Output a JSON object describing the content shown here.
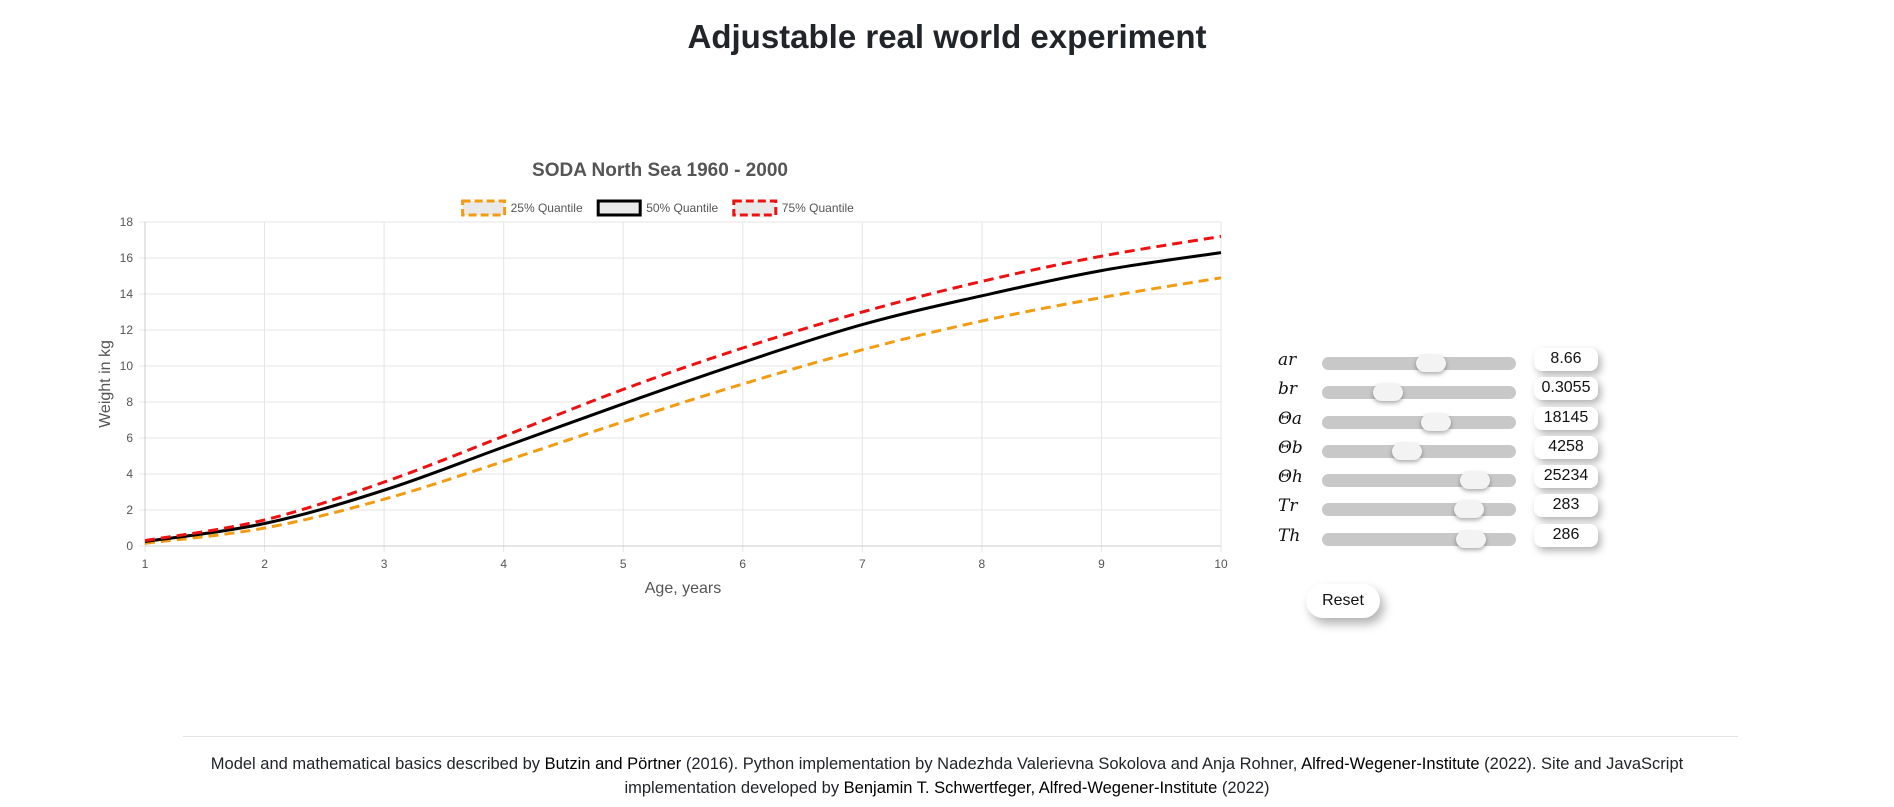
{
  "page": {
    "title": "Adjustable real world experiment"
  },
  "chart_data": {
    "type": "line",
    "title": "SODA North Sea 1960 - 2000",
    "xlabel": "Age, years",
    "ylabel": "Weight in kg",
    "xlim": [
      1,
      10
    ],
    "ylim": [
      0,
      18
    ],
    "xticks": [
      "1",
      "2",
      "3",
      "4",
      "5",
      "6",
      "7",
      "8",
      "9",
      "10"
    ],
    "yticks": [
      "0",
      "2",
      "4",
      "6",
      "8",
      "10",
      "12",
      "14",
      "16",
      "18"
    ],
    "grid": true,
    "legend_position": "top",
    "x": [
      1,
      2,
      3,
      4,
      5,
      6,
      7,
      8,
      9,
      10
    ],
    "series": [
      {
        "name": "25% Quantile",
        "color": "#f39c12",
        "dashed": true,
        "values": [
          0.15,
          1.0,
          2.6,
          4.7,
          6.9,
          9.0,
          10.9,
          12.5,
          13.8,
          14.9
        ]
      },
      {
        "name": "50% Quantile",
        "color": "#000000",
        "dashed": false,
        "values": [
          0.25,
          1.25,
          3.1,
          5.5,
          7.9,
          10.2,
          12.3,
          13.9,
          15.3,
          16.3
        ]
      },
      {
        "name": "75% Quantile",
        "color": "#ee1111",
        "dashed": true,
        "values": [
          0.3,
          1.45,
          3.55,
          6.1,
          8.7,
          11.0,
          13.0,
          14.7,
          16.1,
          17.2
        ]
      }
    ]
  },
  "parameters": {
    "items": [
      {
        "symbol": "ar",
        "value": "8.66",
        "position": 0.56
      },
      {
        "symbol": "br",
        "value": "0.3055",
        "position": 0.34
      },
      {
        "symbol": "Θa",
        "value": "18145",
        "position": 0.59
      },
      {
        "symbol": "Θb",
        "value": "4258",
        "position": 0.44
      },
      {
        "symbol": "Θh",
        "value": "25234",
        "position": 0.79
      },
      {
        "symbol": "Tr",
        "value": "283",
        "position": 0.76
      },
      {
        "symbol": "Th",
        "value": "286",
        "position": 0.77
      }
    ],
    "reset_label": "Reset"
  },
  "footer": {
    "t1": "Model and mathematical basics described by ",
    "link1": "Butzin and Pörtner",
    "t2": " (2016). Python implementation by Nadezhda Valerievna Sokolova and Anja Rohner, ",
    "link2": "Alfred-Wegener-Institute",
    "t3": " (2022). Site and JavaScript implementation developed by ",
    "link3": "Benjamin T. Schwertfeger, Alfred-Wegener-Institute",
    "t4": " (2022)"
  }
}
